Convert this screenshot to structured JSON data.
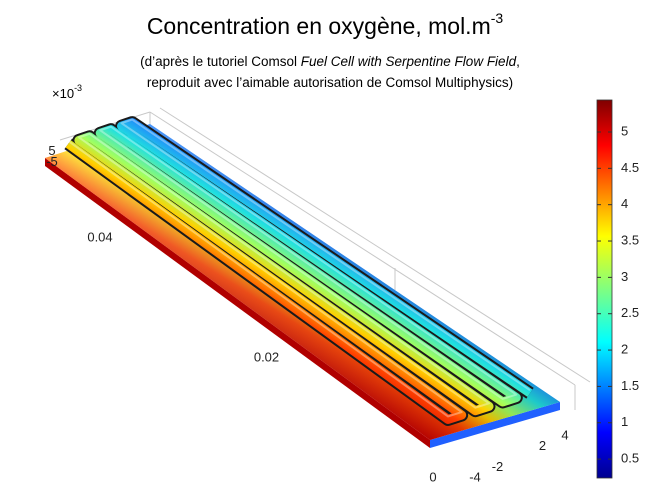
{
  "chart_data": {
    "type": "3d-surface",
    "title": "Concentration en oxygène, mol.m",
    "title_superscript": "-3",
    "subtitle_lines": [
      [
        {
          "text": "(d’après le tutoriel Comsol "
        },
        {
          "text": "Fuel Cell with Serpentine Flow Field",
          "italic": true
        },
        {
          "text": ","
        }
      ],
      [
        {
          "text": "reproduit avec l’aimable autorisation de Comsol Multiphysics)"
        }
      ]
    ],
    "z_multiplier": {
      "base": "×10",
      "exponent": "-3"
    },
    "zticks": [
      5,
      -5
    ],
    "yticks": [
      0,
      0.02,
      0.04
    ],
    "xticks": [
      -4,
      -2,
      2,
      4
    ],
    "colorbar": {
      "colormap": "jet",
      "clim": [
        0.24,
        5.44
      ],
      "ticks": [
        0.5,
        1,
        1.5,
        2,
        2.5,
        3,
        3.5,
        4,
        4.5,
        5
      ]
    }
  }
}
